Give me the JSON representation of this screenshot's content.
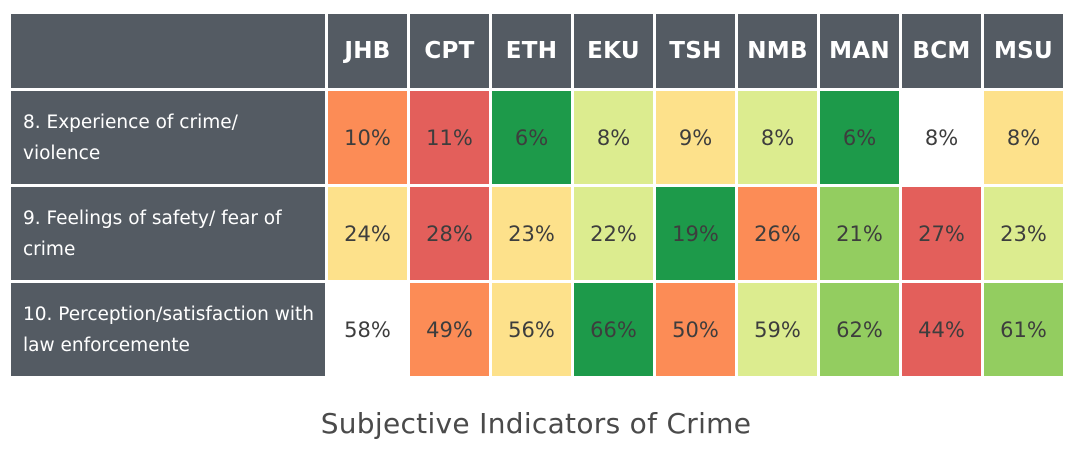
{
  "chart_data": {
    "type": "heatmap",
    "title": "Subjective Indicators of Crime",
    "columns": [
      "JHB",
      "CPT",
      "ETH",
      "EKU",
      "TSH",
      "NMB",
      "MAN",
      "BCM",
      "MSU"
    ],
    "rows": [
      {
        "label": "8. Experience of crime/ violence",
        "values": [
          "10%",
          "11%",
          "6%",
          "8%",
          "9%",
          "8%",
          "6%",
          "8%",
          "8%"
        ],
        "colors": [
          "#fc8c56",
          "#e35f5b",
          "#1d9a4a",
          "#dcec8f",
          "#fde18b",
          "#dcec8f",
          "#1d9a4a",
          "#ffffff",
          "#fde18b"
        ]
      },
      {
        "label": "9. Feelings of safety/ fear of crime",
        "values": [
          "24%",
          "28%",
          "23%",
          "22%",
          "19%",
          "26%",
          "21%",
          "27%",
          "23%"
        ],
        "colors": [
          "#fde18b",
          "#e35f5b",
          "#fde18b",
          "#dcec8f",
          "#1d9a4a",
          "#fc8c56",
          "#93cd60",
          "#e35f5b",
          "#dcec8f"
        ]
      },
      {
        "label": "10. Perception/satisfaction with law enforcemente",
        "values": [
          "58%",
          "49%",
          "56%",
          "66%",
          "50%",
          "59%",
          "62%",
          "44%",
          "61%"
        ],
        "colors": [
          "#ffffff",
          "#fc8c56",
          "#fde18b",
          "#1d9a4a",
          "#fc8c56",
          "#dcec8f",
          "#93cd60",
          "#e35f5b",
          "#93cd60"
        ]
      }
    ]
  }
}
